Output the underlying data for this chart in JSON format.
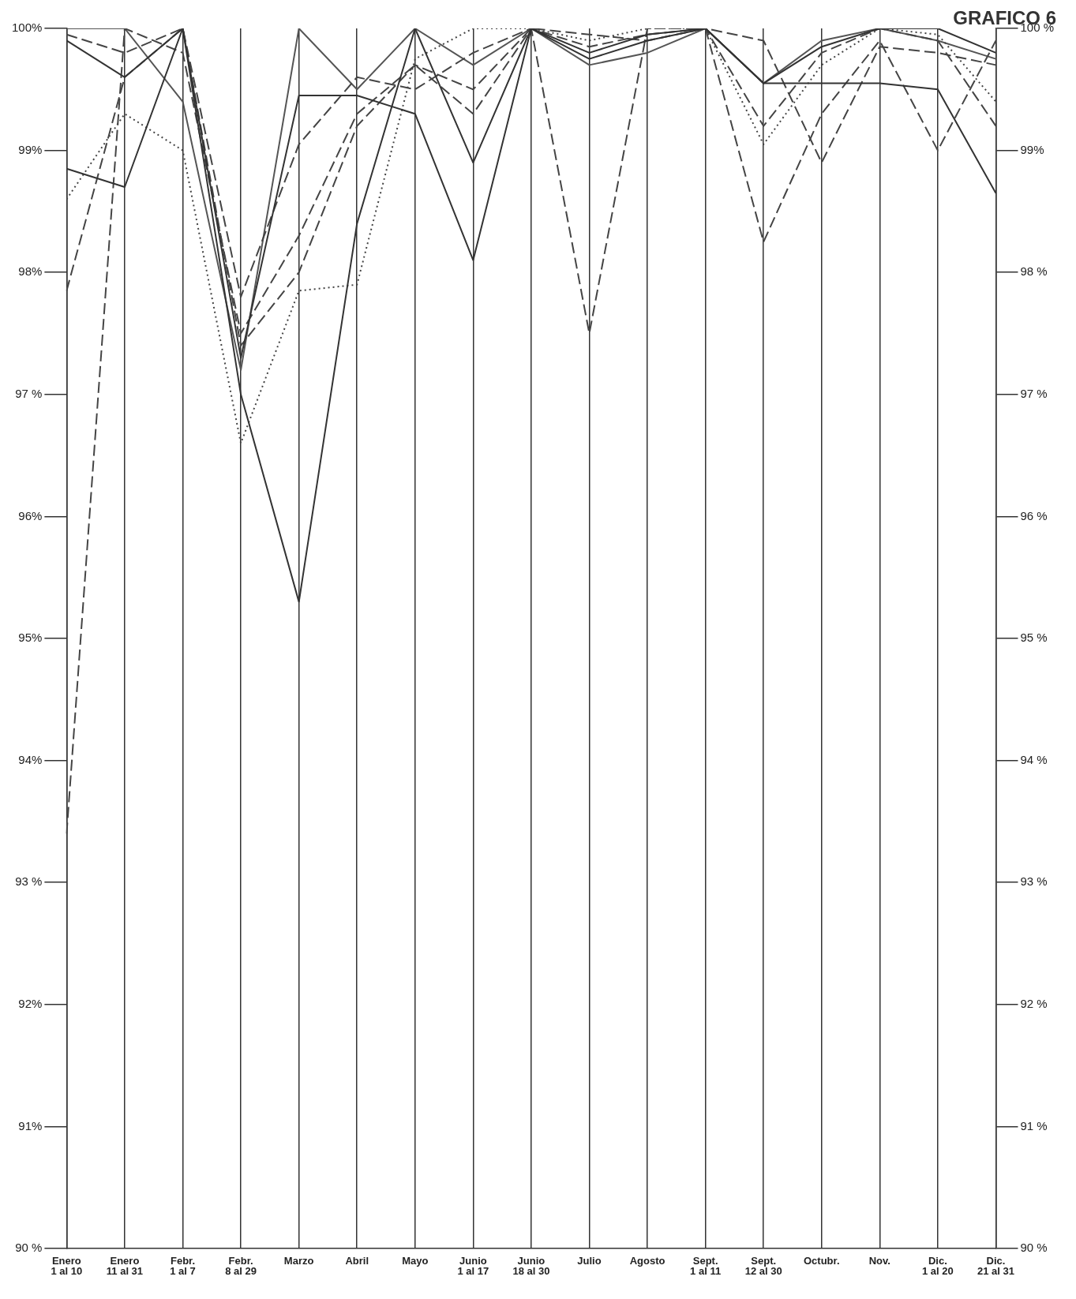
{
  "chart_data": {
    "type": "line",
    "title": "GRAFICO 6",
    "categories": [
      "Enero\n1 al 10",
      "Enero\n11 al 31",
      "Febr.\n1 al 7",
      "Febr.\n8 al 29",
      "Marzo",
      "Abril",
      "Mayo",
      "Junio\n1 al 17",
      "Junio\n18 al 30",
      "Julio",
      "Agosto",
      "Sept.\n1 al 11",
      "Sept.\n12 al 30",
      "Octubr.",
      "Nov.",
      "Dic.\n1 al 20",
      "Dic.\n21 al 31"
    ],
    "series": [
      {
        "color": "#333333",
        "line_style": "solid",
        "values": [
          98.85,
          98.7,
          100,
          97.3,
          99.45,
          99.45,
          99.3,
          98.1,
          100,
          99.75,
          99.9,
          100,
          99.55,
          99.55,
          99.55,
          99.5,
          98.65
        ]
      },
      {
        "color": "#333333",
        "line_style": "solid",
        "values": [
          99.9,
          99.6,
          100,
          97.0,
          95.3,
          98.4,
          100,
          98.9,
          100,
          99.8,
          99.95,
          100,
          99.55,
          99.85,
          100,
          100,
          99.8
        ]
      },
      {
        "color": "#444444",
        "line_style": "dashed",
        "values": [
          93.4,
          100,
          99.8,
          97.5,
          98.3,
          99.3,
          99.7,
          99.3,
          100,
          97.5,
          100,
          100,
          99.2,
          99.8,
          100,
          99.9,
          99.2
        ]
      },
      {
        "color": "#444444",
        "line_style": "dashed",
        "values": [
          97.85,
          99.6,
          100,
          97.4,
          98.0,
          99.2,
          99.7,
          99.5,
          100,
          99.95,
          99.9,
          100,
          98.25,
          99.3,
          99.9,
          99.0,
          99.9
        ]
      },
      {
        "color": "#444444",
        "line_style": "dotted",
        "values": [
          98.6,
          99.3,
          99.0,
          96.6,
          97.85,
          97.9,
          99.75,
          100,
          100,
          99.9,
          100,
          100,
          99.05,
          99.7,
          100,
          99.95,
          99.4
        ]
      },
      {
        "color": "#444444",
        "line_style": "dashed",
        "values": [
          99.95,
          99.8,
          100,
          97.8,
          99.05,
          99.6,
          99.5,
          99.8,
          100,
          99.85,
          99.95,
          100,
          99.9,
          98.9,
          99.85,
          99.8,
          99.7
        ]
      },
      {
        "color": "#555555",
        "line_style": "solid",
        "values": [
          100,
          100,
          99.4,
          97.2,
          100,
          99.5,
          100,
          99.7,
          100,
          99.7,
          99.8,
          100,
          99.55,
          99.9,
          100,
          99.9,
          99.75
        ]
      }
    ],
    "ylim": [
      90,
      100
    ],
    "yticks": [
      {
        "value": 90,
        "label": "90 %"
      },
      {
        "value": 91,
        "label": "91%"
      },
      {
        "value": 92,
        "label": "92%"
      },
      {
        "value": 93,
        "label": "93 %"
      },
      {
        "value": 94,
        "label": "94%"
      },
      {
        "value": 95,
        "label": "95%"
      },
      {
        "value": 96,
        "label": "96%"
      },
      {
        "value": 97,
        "label": "97 %"
      },
      {
        "value": 98,
        "label": "98%"
      },
      {
        "value": 99,
        "label": "99%"
      },
      {
        "value": 100,
        "label": "100%"
      }
    ],
    "y2lim": [
      90,
      100
    ],
    "y2ticks": [
      {
        "value": 90,
        "label": "90 %"
      },
      {
        "value": 91,
        "label": "91 %"
      },
      {
        "value": 92,
        "label": "92 %"
      },
      {
        "value": 93,
        "label": "93 %"
      },
      {
        "value": 94,
        "label": "94 %"
      },
      {
        "value": 95,
        "label": "95 %"
      },
      {
        "value": 96,
        "label": "96 %"
      },
      {
        "value": 97,
        "label": "97 %"
      },
      {
        "value": 98,
        "label": "98 %"
      },
      {
        "value": 99,
        "label": "99%"
      },
      {
        "value": 100,
        "label": "100 %"
      }
    ],
    "grid": "x",
    "legend": false,
    "marker": "none"
  }
}
